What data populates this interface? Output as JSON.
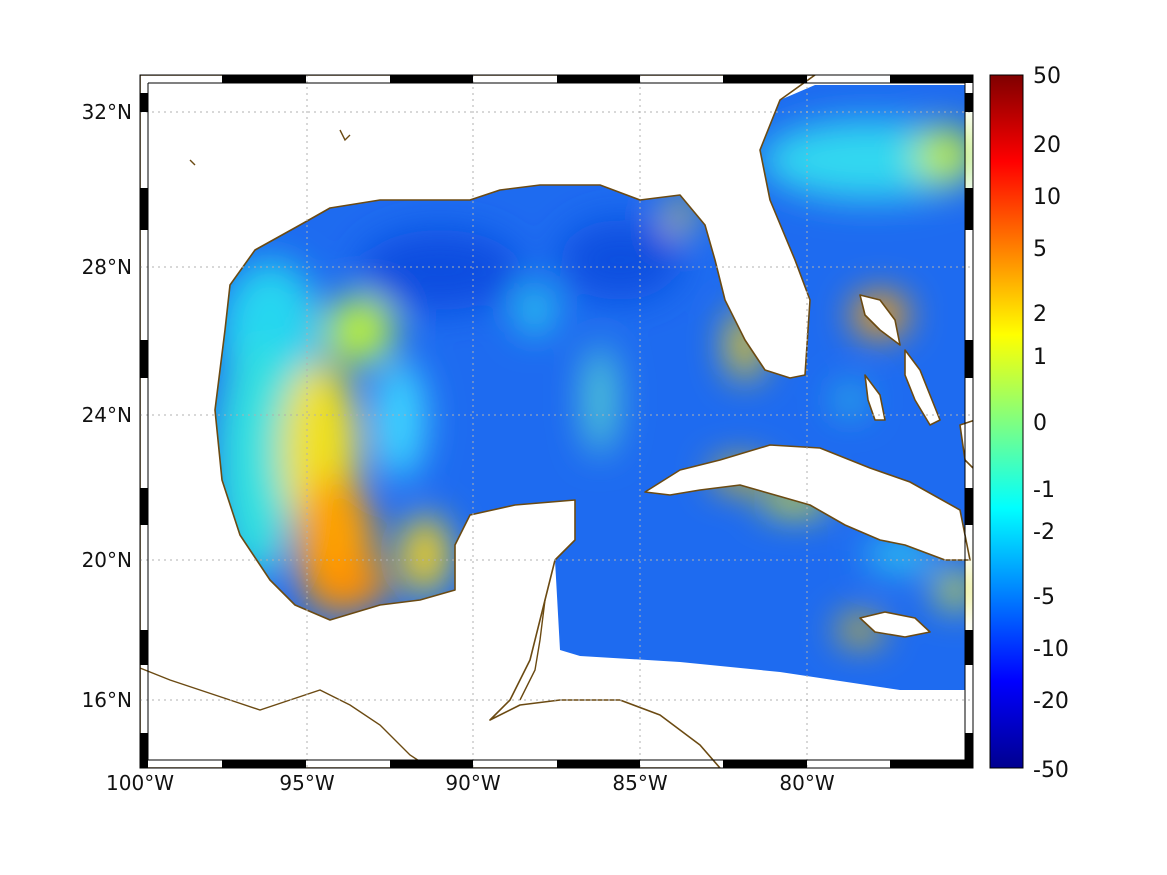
{
  "map": {
    "projection": "equirectangular",
    "lon_range": [
      -100,
      -75
    ],
    "lat_range": [
      14.2,
      32.9
    ],
    "grid": "dotted",
    "frame_style": "alternating black-white border",
    "coastline_color": "#6b4a12",
    "land_color": "#ffffff",
    "x_ticks": [
      {
        "lon": -100,
        "label": "100°W"
      },
      {
        "lon": -95,
        "label": "95°W"
      },
      {
        "lon": -90,
        "label": "90°W"
      },
      {
        "lon": -85,
        "label": "85°W"
      },
      {
        "lon": -80,
        "label": "80°W"
      }
    ],
    "y_ticks": [
      {
        "lat": 32,
        "label": "32°N"
      },
      {
        "lat": 28,
        "label": "28°N"
      },
      {
        "lat": 24,
        "label": "24°N"
      },
      {
        "lat": 20,
        "label": "20°N"
      },
      {
        "lat": 16,
        "label": "16°N"
      }
    ]
  },
  "colorbar": {
    "colormap": "jet",
    "scale": "nonlinear",
    "labels": [
      "50",
      "20",
      "10",
      "5",
      "2",
      "1",
      "0",
      "-1",
      "-2",
      "-5",
      "-10",
      "-20",
      "-50"
    ],
    "colors": [
      "#7f0000",
      "#ff0000",
      "#ff8000",
      "#ffff00",
      "#80ff80",
      "#00ffff",
      "#0080ff",
      "#0000ff",
      "#00008f"
    ]
  }
}
